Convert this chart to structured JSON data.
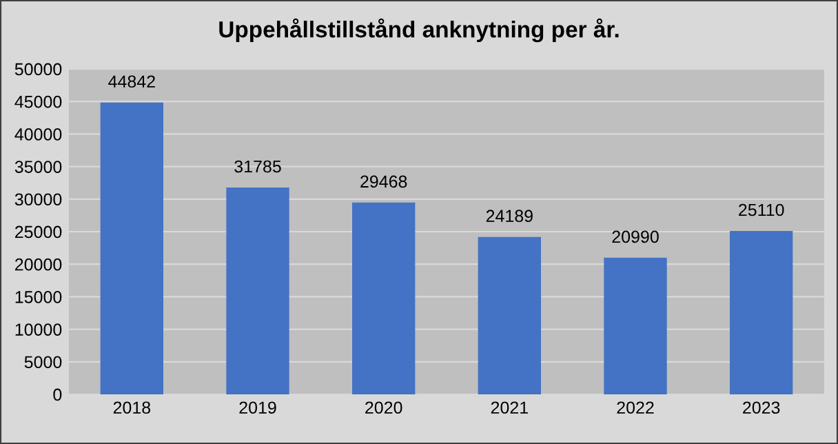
{
  "chart_data": {
    "type": "bar",
    "title": "Uppehållstillstånd anknytning per år.",
    "categories": [
      "2018",
      "2019",
      "2020",
      "2021",
      "2022",
      "2023"
    ],
    "values": [
      44842,
      31785,
      29468,
      24189,
      20990,
      25110
    ],
    "color": "#4472c4",
    "ylim": [
      0,
      50000
    ],
    "yticks": [
      0,
      5000,
      10000,
      15000,
      20000,
      25000,
      30000,
      35000,
      40000,
      45000,
      50000
    ],
    "grid": "y",
    "data_labels": true,
    "legend": false
  }
}
